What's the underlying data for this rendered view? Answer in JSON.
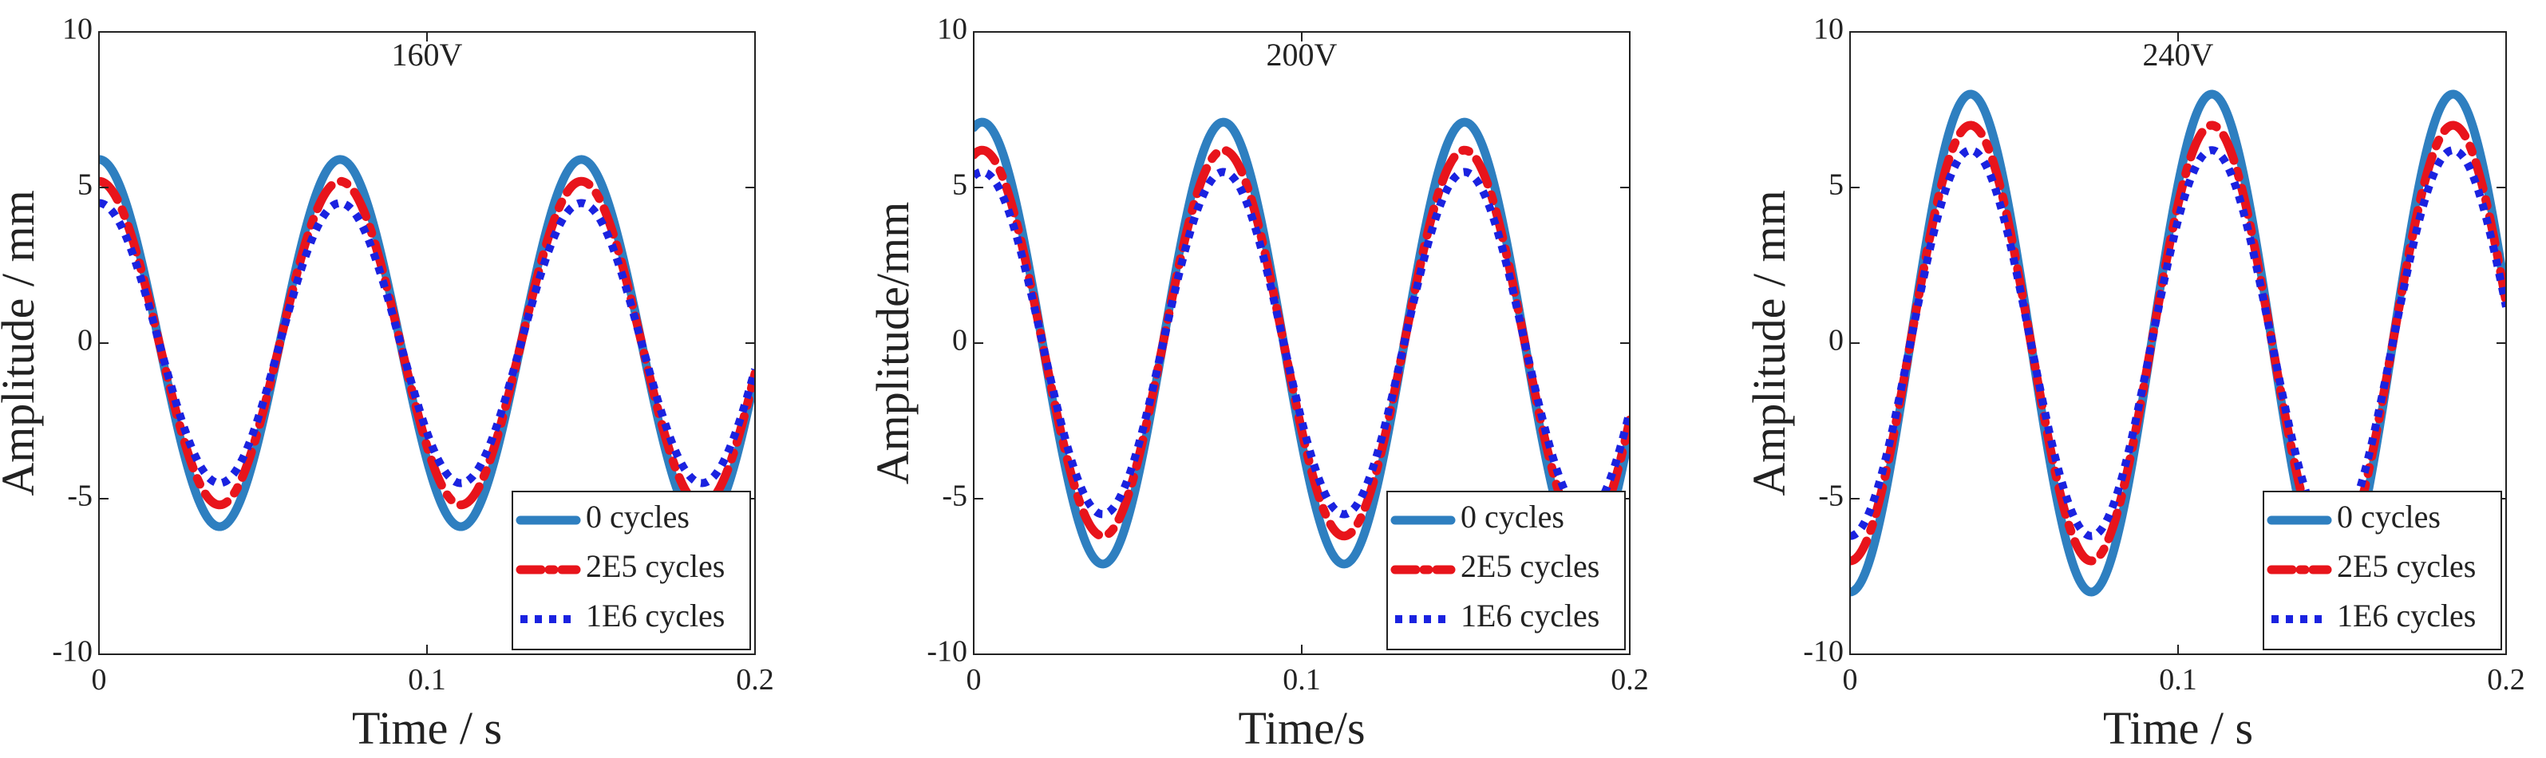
{
  "chart_data": [
    {
      "type": "line",
      "title": "160V",
      "xlabel": "Time / s",
      "ylabel": "Amplitude / mm",
      "xlim": [
        0,
        0.2
      ],
      "ylim": [
        -10,
        10
      ],
      "xticks": [
        0,
        0.1,
        0.2
      ],
      "yticks": [
        -10,
        -5,
        0,
        5,
        10
      ],
      "xtick_labels": [
        "0",
        "0.1",
        "0.2"
      ],
      "ytick_labels": [
        "-10",
        "-5",
        "0",
        "5",
        "10"
      ],
      "frequency_hz": 13.6,
      "phase_rad": 1.5708,
      "series": [
        {
          "name": "0 cycles",
          "amplitude": 5.9,
          "color": "#2E7FC0",
          "style": "solid"
        },
        {
          "name": "2E5 cycles",
          "amplitude": 5.2,
          "color": "#E8141B",
          "style": "dashdot"
        },
        {
          "name": "1E6 cycles",
          "amplitude": 4.5,
          "color": "#1A22E0",
          "style": "dotted"
        }
      ],
      "legend_position": "bottom-right",
      "grid": false
    },
    {
      "type": "line",
      "title": "200V",
      "xlabel": "Time/s",
      "ylabel": "Amplitude/mm",
      "xlim": [
        0,
        0.2
      ],
      "ylim": [
        -10,
        10
      ],
      "xticks": [
        0,
        0.1,
        0.2
      ],
      "yticks": [
        -10,
        -5,
        0,
        5,
        10
      ],
      "xtick_labels": [
        "0",
        "0.1",
        "0.2"
      ],
      "ytick_labels": [
        "-10",
        "-5",
        "0",
        "5",
        "10"
      ],
      "frequency_hz": 13.6,
      "phase_rad": 1.35,
      "series": [
        {
          "name": "0 cycles",
          "amplitude": 7.1,
          "color": "#2E7FC0",
          "style": "solid"
        },
        {
          "name": "2E5 cycles",
          "amplitude": 6.2,
          "color": "#E8141B",
          "style": "dashdot"
        },
        {
          "name": "1E6 cycles",
          "amplitude": 5.5,
          "color": "#1A22E0",
          "style": "dotted"
        }
      ],
      "legend_position": "bottom-right",
      "grid": false
    },
    {
      "type": "line",
      "title": "240V",
      "xlabel": "Time / s",
      "ylabel": "Amplitude / mm",
      "xlim": [
        0,
        0.2
      ],
      "ylim": [
        -10,
        10
      ],
      "xticks": [
        0,
        0.1,
        0.2
      ],
      "yticks": [
        -10,
        -5,
        0,
        5,
        10
      ],
      "xtick_labels": [
        "0",
        "0.1",
        "0.2"
      ],
      "ytick_labels": [
        "-10",
        "-5",
        "0",
        "5",
        "10"
      ],
      "frequency_hz": 13.6,
      "phase_rad": -1.5708,
      "series": [
        {
          "name": "0 cycles",
          "amplitude": 8.0,
          "color": "#2E7FC0",
          "style": "solid"
        },
        {
          "name": "2E5 cycles",
          "amplitude": 7.0,
          "color": "#E8141B",
          "style": "dashdot"
        },
        {
          "name": "1E6 cycles",
          "amplitude": 6.2,
          "color": "#1A22E0",
          "style": "dotted"
        }
      ],
      "legend_position": "bottom-right",
      "grid": false
    }
  ]
}
